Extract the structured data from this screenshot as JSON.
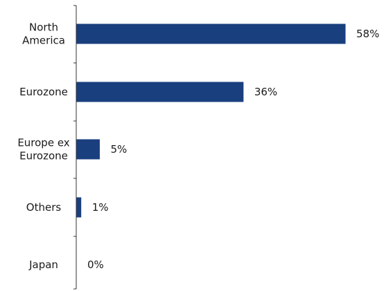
{
  "chart_data": {
    "type": "bar",
    "orientation": "horizontal",
    "categories": [
      [
        "North",
        "America"
      ],
      [
        "Eurozone"
      ],
      [
        "Europe ex",
        "Eurozone"
      ],
      [
        "Others"
      ],
      [
        "Japan"
      ]
    ],
    "values": [
      58,
      36,
      5,
      1,
      0
    ],
    "value_labels": [
      "58%",
      "36%",
      "5%",
      "1%",
      "0%"
    ],
    "value_unit": "%",
    "bar_color": "#1a3f7e",
    "axis_color": "#333333",
    "grid": false,
    "legend": "none",
    "title": "",
    "xlabel": "",
    "ylabel": ""
  }
}
